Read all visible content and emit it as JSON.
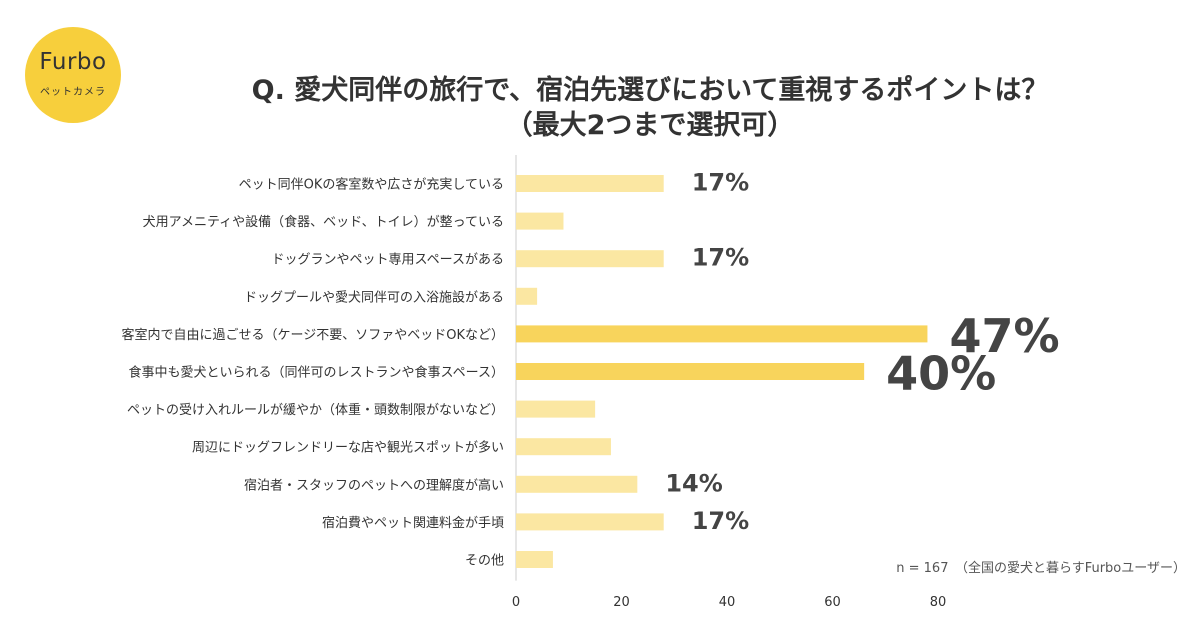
{
  "logo": {
    "brand": "Furbo",
    "sub": "ペットカメラ"
  },
  "title": {
    "line1": "Q.  愛犬同伴の旅行で、宿泊先選びにおいて重視するポイントは？",
    "line2": "（最大2つまで選択可）"
  },
  "note": "n = 167　（全国の愛犬と暮らすFurboユーザー）",
  "colors": {
    "bar_light": "#fbe7a2",
    "bar_highlight": "#f8d45c",
    "logo_bg": "#f7cf3c",
    "text": "#333333",
    "axis": "#cccccc"
  },
  "chart_data": {
    "type": "bar",
    "orientation": "horizontal",
    "categories": [
      "ペット同伴OKの客室数や広さが充実している",
      "犬用アメニティや設備（食器、ベッド、トイレ）が整っている",
      "ドッグランやペット専用スペースがある",
      "ドッグプールや愛犬同伴可の入浴施設がある",
      "客室内で自由に過ごせる（ケージ不要、ソファやベッドOKなど）",
      "食事中も愛犬といられる（同伴可のレストランや食事スペース）",
      "ペットの受け入れルールが緩やか（体重・頭数制限がないなど）",
      "周辺にドッグフレンドリーな店や観光スポットが多い",
      "宿泊者・スタッフのペットへの理解度が高い",
      "宿泊費やペット関連料金が手頃",
      "その他"
    ],
    "values": [
      28,
      9,
      28,
      4,
      78,
      66,
      15,
      18,
      23,
      28,
      7
    ],
    "highlight": [
      false,
      false,
      false,
      false,
      true,
      true,
      false,
      false,
      false,
      false,
      false
    ],
    "data_labels": [
      "17%",
      "",
      "17%",
      "",
      "47%",
      "40%",
      "",
      "",
      "14%",
      "17%",
      ""
    ],
    "xlim": [
      0,
      80
    ],
    "xticks": [
      "0",
      "20",
      "40",
      "60",
      "80"
    ],
    "grid": false,
    "legend": "none"
  }
}
